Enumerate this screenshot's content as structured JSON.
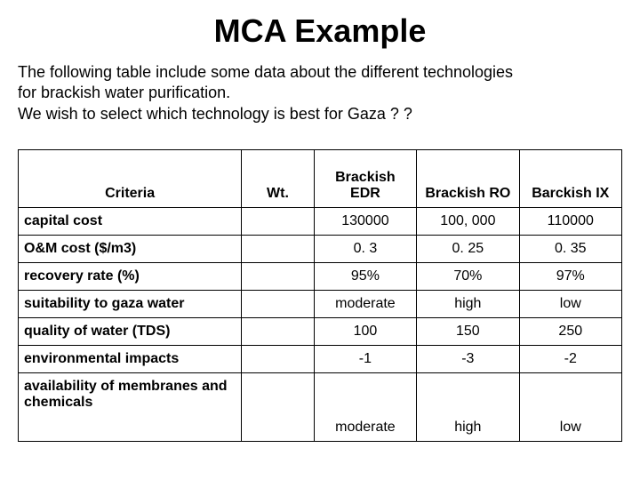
{
  "title": "MCA Example",
  "intro": "The following table include some data about the different technologies\n for brackish water purification.\nWe wish to select which technology is best for Gaza ? ?",
  "table": {
    "columns": [
      "Criteria",
      "Wt.",
      "Brackish EDR",
      "Brackish RO",
      "Barckish IX"
    ],
    "rows": [
      {
        "criteria": "capital cost",
        "wt": "",
        "vals": [
          "130000",
          "100, 000",
          "110000"
        ],
        "tall": false
      },
      {
        "criteria": "O&M cost ($/m3)",
        "wt": "",
        "vals": [
          "0. 3",
          "0. 25",
          "0. 35"
        ],
        "tall": false
      },
      {
        "criteria": "recovery rate (%)",
        "wt": "",
        "vals": [
          "95%",
          "70%",
          "97%"
        ],
        "tall": false
      },
      {
        "criteria": "suitability to gaza water",
        "wt": "",
        "vals": [
          "moderate",
          "high",
          "low"
        ],
        "tall": false
      },
      {
        "criteria": "quality of water (TDS)",
        "wt": "",
        "vals": [
          "100",
          "150",
          "250"
        ],
        "tall": false
      },
      {
        "criteria": "environmental impacts",
        "wt": "",
        "vals": [
          "-1",
          "-3",
          "-2"
        ],
        "tall": false
      },
      {
        "criteria": "availability of membranes and chemicals",
        "wt": "",
        "vals": [
          "moderate",
          "high",
          "low"
        ],
        "tall": true
      }
    ]
  },
  "style": {
    "title_fontsize": 36,
    "intro_fontsize": 18,
    "cell_fontsize": 16,
    "text_color": "#000000",
    "background_color": "#ffffff",
    "border_color": "#000000"
  }
}
